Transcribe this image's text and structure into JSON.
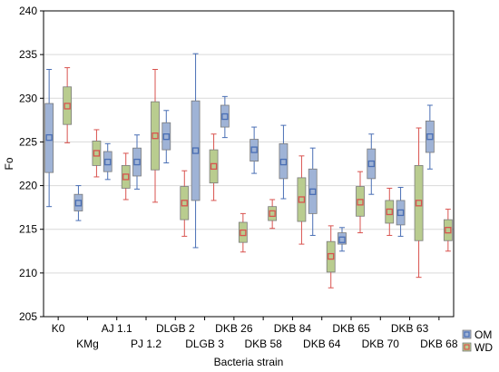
{
  "chart_data": {
    "type": "box",
    "xlabel": "Bacteria strain",
    "ylabel": "Fo",
    "ylim": [
      205,
      240
    ],
    "yticks": [
      205,
      210,
      215,
      220,
      225,
      230,
      235,
      240
    ],
    "grid": true,
    "legend_position": "right-bottom",
    "categories": [
      "K0",
      "KMg",
      "AJ 1.1",
      "PJ 1.2",
      "DLGB 2",
      "DLGB 3",
      "DKB 26",
      "DKB 58",
      "DKB 84",
      "DKB 64",
      "DKB 65",
      "DKB 70",
      "DKB 63",
      "DKB 68"
    ],
    "series": [
      {
        "name": "OM",
        "color": "#4a6fb5",
        "fill": "#9fb3d6",
        "boxes": [
          {
            "category": "K0",
            "x": 0,
            "mean": 225.5,
            "q1": 221.5,
            "q3": 229.4,
            "min": 217.6,
            "max": 233.3
          },
          {
            "category": "AJ 1.1",
            "x": 2,
            "mean": 222.7,
            "q1": 221.6,
            "q3": 223.9,
            "min": 220.7,
            "max": 224.8
          },
          {
            "category": "DLGB 2",
            "x": 4,
            "mean": 225.6,
            "q1": 224.1,
            "q3": 227.2,
            "min": 222.6,
            "max": 228.6
          },
          {
            "category": "DKB 26",
            "x": 6,
            "mean": 227.9,
            "q1": 226.7,
            "q3": 229.2,
            "min": 225.5,
            "max": 230.2
          },
          {
            "category": "DKB 84",
            "x": 8,
            "mean": 222.7,
            "q1": 220.8,
            "q3": 224.8,
            "min": 218.5,
            "max": 226.9
          },
          {
            "category": "DKB 65",
            "x": 10,
            "mean": 213.8,
            "q1": 213.3,
            "q3": 214.6,
            "min": 212.5,
            "max": 215.2
          },
          {
            "category": "DKB 63",
            "x": 12,
            "mean": 216.9,
            "q1": 215.5,
            "q3": 218.3,
            "min": 214.2,
            "max": 219.8
          },
          {
            "category": "KMg",
            "x": 1,
            "mean": 218.0,
            "q1": 217.1,
            "q3": 219.0,
            "min": 216.0,
            "max": 220.0
          },
          {
            "category": "PJ 1.2",
            "x": 3,
            "mean": 222.7,
            "q1": 221.1,
            "q3": 224.3,
            "min": 219.6,
            "max": 225.8
          },
          {
            "category": "DLGB 3",
            "x": 5,
            "mean": 224.0,
            "q1": 218.3,
            "q3": 229.7,
            "min": 212.9,
            "max": 235.1
          },
          {
            "category": "DKB 58",
            "x": 7,
            "mean": 224.1,
            "q1": 222.8,
            "q3": 225.3,
            "min": 221.4,
            "max": 226.7
          },
          {
            "category": "DKB 64",
            "x": 9,
            "mean": 219.3,
            "q1": 216.8,
            "q3": 221.9,
            "min": 214.3,
            "max": 224.3
          },
          {
            "category": "DKB 70",
            "x": 11,
            "mean": 222.5,
            "q1": 220.8,
            "q3": 224.2,
            "min": 219.0,
            "max": 225.9
          },
          {
            "category": "DKB 68",
            "x": 13,
            "mean": 225.6,
            "q1": 223.8,
            "q3": 227.4,
            "min": 221.9,
            "max": 229.2
          }
        ]
      },
      {
        "name": "WD",
        "color": "#d9534f",
        "fill": "#b9cc8f",
        "boxes": [
          {
            "category": "K0",
            "x": 0,
            "mean": 229.1,
            "q1": 227.0,
            "q3": 231.3,
            "min": 224.9,
            "max": 233.5
          },
          {
            "category": "AJ 1.1",
            "x": 2,
            "mean": 221.0,
            "q1": 219.7,
            "q3": 222.3,
            "min": 218.4,
            "max": 223.7
          },
          {
            "category": "DLGB 2",
            "x": 4,
            "mean": 218.0,
            "q1": 216.1,
            "q3": 219.9,
            "min": 214.2,
            "max": 221.7
          },
          {
            "category": "DKB 26",
            "x": 6,
            "mean": 214.6,
            "q1": 213.5,
            "q3": 215.8,
            "min": 212.4,
            "max": 216.8
          },
          {
            "category": "DKB 84",
            "x": 8,
            "mean": 218.4,
            "q1": 215.9,
            "q3": 220.9,
            "min": 213.3,
            "max": 223.4
          },
          {
            "category": "DKB 65",
            "x": 10,
            "mean": 218.1,
            "q1": 216.5,
            "q3": 219.9,
            "min": 214.6,
            "max": 221.6
          },
          {
            "category": "DKB 63",
            "x": 12,
            "mean": 218.0,
            "q1": 213.7,
            "q3": 222.3,
            "min": 209.5,
            "max": 226.6
          },
          {
            "category": "KMg",
            "x": 1,
            "mean": 223.7,
            "q1": 222.3,
            "q3": 225.1,
            "min": 221.0,
            "max": 226.4
          },
          {
            "category": "PJ 1.2",
            "x": 3,
            "mean": 225.7,
            "q1": 221.8,
            "q3": 229.6,
            "min": 218.1,
            "max": 233.3
          },
          {
            "category": "DLGB 3",
            "x": 5,
            "mean": 222.2,
            "q1": 220.3,
            "q3": 224.1,
            "min": 218.3,
            "max": 225.9
          },
          {
            "category": "DKB 58",
            "x": 7,
            "mean": 216.8,
            "q1": 216.0,
            "q3": 217.6,
            "min": 215.1,
            "max": 218.4
          },
          {
            "category": "DKB 64",
            "x": 9,
            "mean": 211.9,
            "q1": 210.1,
            "q3": 213.6,
            "min": 208.3,
            "max": 215.4
          },
          {
            "category": "DKB 70",
            "x": 11,
            "mean": 217.0,
            "q1": 215.7,
            "q3": 218.3,
            "min": 214.3,
            "max": 219.7
          },
          {
            "category": "DKB 68",
            "x": 13,
            "mean": 214.9,
            "q1": 213.7,
            "q3": 216.1,
            "min": 212.5,
            "max": 217.3
          }
        ]
      }
    ]
  }
}
